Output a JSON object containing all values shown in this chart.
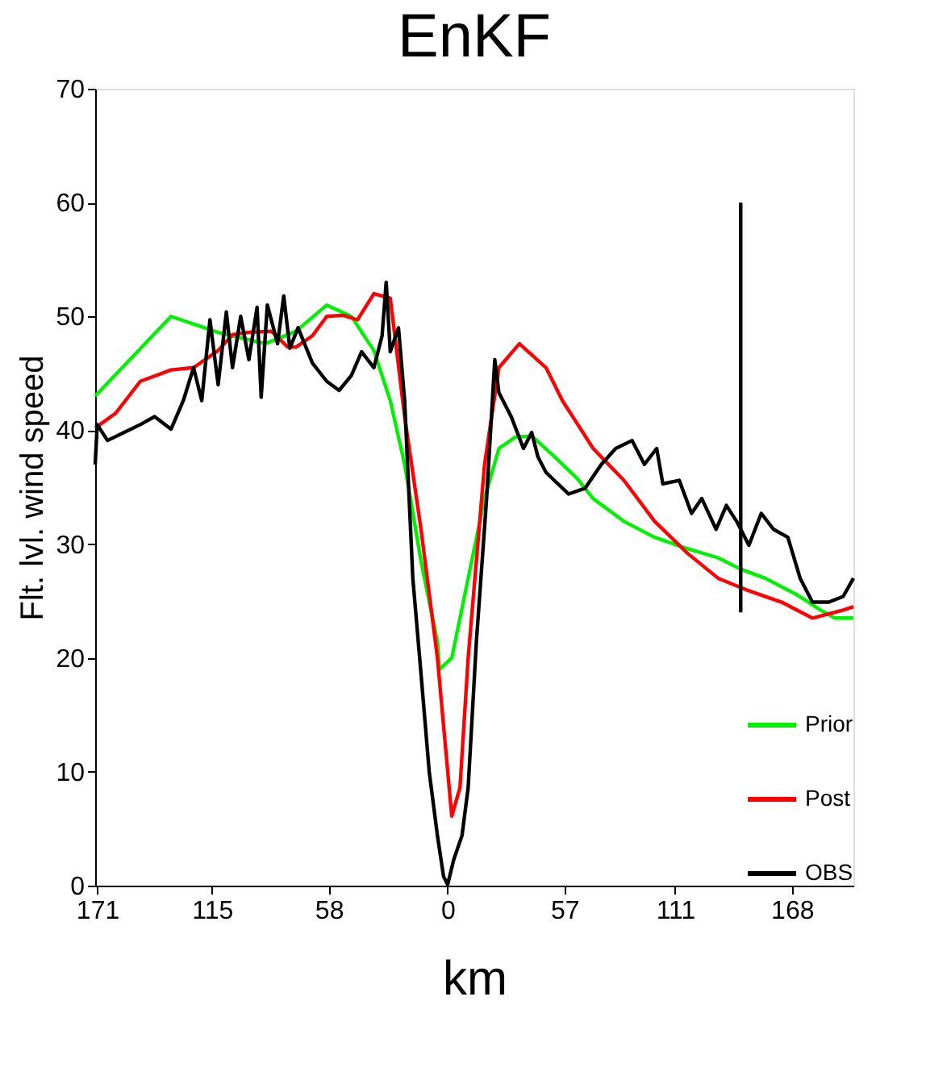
{
  "chart_data": {
    "type": "line",
    "title": "EnKF",
    "xlabel": "km",
    "ylabel": "Flt. lvl. wind speed",
    "xlim": [
      -172,
      198
    ],
    "ylim": [
      0,
      70
    ],
    "xticks": [
      {
        "value": -171,
        "label": "171"
      },
      {
        "value": -115,
        "label": "115"
      },
      {
        "value": -58,
        "label": "58"
      },
      0,
      57,
      111,
      168
    ],
    "yticks": [
      0,
      10,
      20,
      30,
      40,
      50,
      60,
      70
    ],
    "grid": false,
    "legend": "bottom right",
    "line_style": "solid",
    "marker": "none",
    "series": [
      {
        "name": "Prior",
        "color": "#00ee00",
        "x": [
          -172,
          -135,
          -112,
          -89,
          -74,
          -59,
          -47,
          -36,
          -28,
          -21,
          -13,
          -5,
          -4,
          2,
          10,
          18,
          25,
          33,
          41,
          52,
          63,
          71,
          86,
          101,
          117,
          132,
          143,
          155,
          170,
          182,
          189,
          198
        ],
        "values": [
          43,
          50,
          48.6,
          47.6,
          48.7,
          51,
          50,
          47,
          42.6,
          37,
          28.5,
          21.4,
          19,
          20,
          27,
          34,
          38.4,
          39.4,
          39.5,
          37.7,
          35.8,
          34,
          32,
          30.6,
          29.6,
          28.8,
          27.8,
          27,
          25.6,
          24.2,
          23.5,
          23.5
        ]
      },
      {
        "name": "Post",
        "color": "#ff0000",
        "x": [
          -172,
          -162,
          -150,
          -135,
          -124,
          -112,
          -105,
          -97,
          -86,
          -78,
          -74,
          -66,
          -59,
          -51,
          -44,
          -36,
          -28,
          -21,
          -13,
          -5,
          2,
          6,
          10,
          18,
          25,
          35,
          48,
          56,
          71,
          86,
          101,
          117,
          132,
          147,
          163,
          178,
          193,
          198
        ],
        "values": [
          40.2,
          41.5,
          44.3,
          45.3,
          45.5,
          47,
          48.4,
          48.6,
          48.7,
          47.3,
          47.3,
          48.3,
          50,
          50.1,
          49.7,
          52,
          51.6,
          41.2,
          31.3,
          20,
          6.1,
          8.6,
          20,
          37,
          45.5,
          47.6,
          45.5,
          42.6,
          38.4,
          35.6,
          32,
          29.2,
          27,
          25.9,
          24.9,
          23.5,
          24.2,
          24.5
        ]
      },
      {
        "name": "OBS",
        "color": "#000000",
        "x": [
          -172,
          -171,
          -166,
          -158,
          -150,
          -143,
          -135,
          -129,
          -124,
          -120,
          -116,
          -112,
          -108,
          -105,
          -101,
          -97,
          -93,
          -91,
          -88,
          -83,
          -80,
          -77,
          -73,
          -66,
          -59,
          -53,
          -47,
          -42,
          -36,
          -32,
          -30,
          -28,
          -24,
          -21,
          -17,
          -13,
          -9,
          -5,
          -2,
          0,
          3,
          7,
          10,
          14,
          19,
          23,
          25,
          31,
          37,
          41,
          44,
          48,
          52,
          59,
          67,
          75,
          82,
          90,
          96,
          102,
          105,
          113,
          119,
          124,
          131,
          136,
          141,
          147,
          153,
          159,
          166,
          172,
          178,
          186,
          193,
          198
        ],
        "values": [
          37,
          40.5,
          39.1,
          39.8,
          40.5,
          41.2,
          40.1,
          42.6,
          45.5,
          42.6,
          49.7,
          44,
          50.4,
          45.5,
          50,
          46.2,
          50.8,
          42.9,
          51,
          47.6,
          51.8,
          47.2,
          49,
          45.9,
          44.3,
          43.5,
          44.8,
          46.9,
          45.5,
          48.3,
          53,
          46.9,
          49,
          42.6,
          27,
          18.6,
          10,
          4.4,
          0.8,
          0.1,
          2.3,
          4.4,
          8.6,
          21.4,
          34,
          46.2,
          43.3,
          41.2,
          38.4,
          39.8,
          37.7,
          36.3,
          35.6,
          34.4,
          34.9,
          37,
          38.4,
          39.1,
          37,
          38.4,
          35.3,
          35.6,
          32.7,
          34,
          31.3,
          33.4,
          32,
          29.9,
          32.7,
          31.3,
          30.6,
          27,
          24.9,
          24.9,
          25.4,
          27
        ]
      },
      {
        "color": "#000000",
        "x": [
          143,
          143
        ],
        "values": [
          24,
          60
        ]
      }
    ]
  }
}
